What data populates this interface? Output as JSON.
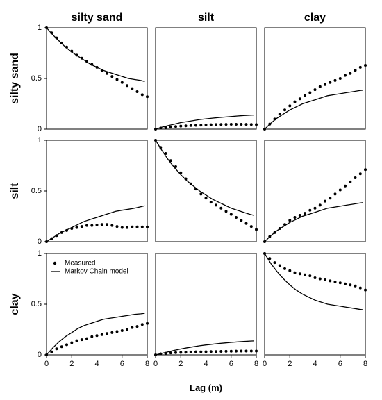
{
  "chart_data": {
    "type": "scatter",
    "layout": "3x3 facet grid",
    "x_label": "Lag  (m)",
    "x_ticks": [
      0,
      2,
      4,
      6,
      8
    ],
    "y_ticks": [
      0,
      0.5,
      1
    ],
    "y_tick_labels": [
      "0",
      "0.5",
      "1"
    ],
    "xlim": [
      0,
      8
    ],
    "ylim": [
      0,
      1
    ],
    "column_titles": [
      "silty sand",
      "silt",
      "clay"
    ],
    "row_titles": [
      "silty sand",
      "silt",
      "clay"
    ],
    "legend": {
      "placement": "top-left of bottom-left panel",
      "measured_label": "Measured",
      "model_label": "Markov Chain model"
    },
    "measured_x": [
      0,
      0.4,
      0.8,
      1.2,
      1.6,
      2.0,
      2.4,
      2.8,
      3.2,
      3.6,
      4.0,
      4.4,
      4.8,
      5.2,
      5.6,
      6.0,
      6.4,
      6.8,
      7.2,
      7.6,
      8.0
    ],
    "model_x": [
      0,
      0.5,
      1.0,
      1.5,
      2.0,
      2.5,
      3.0,
      3.5,
      4.0,
      4.5,
      5.0,
      5.5,
      6.0,
      6.5,
      7.0,
      7.5,
      7.8
    ],
    "panels": [
      {
        "row": "silty sand",
        "col": "silty sand",
        "measured": [
          1.0,
          0.95,
          0.9,
          0.85,
          0.81,
          0.77,
          0.73,
          0.7,
          0.67,
          0.64,
          0.61,
          0.58,
          0.55,
          0.52,
          0.49,
          0.46,
          0.43,
          0.4,
          0.37,
          0.34,
          0.32
        ],
        "model": [
          1.0,
          0.93,
          0.87,
          0.81,
          0.76,
          0.72,
          0.68,
          0.64,
          0.61,
          0.58,
          0.56,
          0.54,
          0.52,
          0.5,
          0.49,
          0.48,
          0.47
        ]
      },
      {
        "row": "silty sand",
        "col": "silt",
        "measured": [
          0.0,
          0.01,
          0.015,
          0.02,
          0.025,
          0.03,
          0.033,
          0.036,
          0.038,
          0.04,
          0.042,
          0.044,
          0.045,
          0.046,
          0.047,
          0.048,
          0.048,
          0.048,
          0.047,
          0.046,
          0.045
        ],
        "model": [
          0.0,
          0.02,
          0.035,
          0.05,
          0.065,
          0.075,
          0.085,
          0.095,
          0.102,
          0.109,
          0.115,
          0.12,
          0.125,
          0.13,
          0.135,
          0.138,
          0.14
        ]
      },
      {
        "row": "silty sand",
        "col": "clay",
        "measured": [
          0.0,
          0.05,
          0.1,
          0.15,
          0.19,
          0.23,
          0.27,
          0.3,
          0.33,
          0.36,
          0.39,
          0.42,
          0.44,
          0.46,
          0.48,
          0.5,
          0.53,
          0.55,
          0.58,
          0.61,
          0.63
        ],
        "model": [
          0.0,
          0.06,
          0.11,
          0.15,
          0.19,
          0.22,
          0.25,
          0.27,
          0.29,
          0.31,
          0.33,
          0.34,
          0.35,
          0.36,
          0.37,
          0.38,
          0.385
        ]
      },
      {
        "row": "silt",
        "col": "silty sand",
        "measured": [
          0.0,
          0.03,
          0.06,
          0.09,
          0.11,
          0.13,
          0.14,
          0.15,
          0.16,
          0.16,
          0.165,
          0.17,
          0.17,
          0.16,
          0.15,
          0.14,
          0.14,
          0.145,
          0.145,
          0.145,
          0.145
        ],
        "model": [
          0.0,
          0.04,
          0.08,
          0.11,
          0.14,
          0.17,
          0.2,
          0.22,
          0.24,
          0.26,
          0.28,
          0.3,
          0.31,
          0.32,
          0.33,
          0.345,
          0.355
        ]
      },
      {
        "row": "silt",
        "col": "silt",
        "measured": [
          1.0,
          0.93,
          0.87,
          0.8,
          0.74,
          0.68,
          0.62,
          0.57,
          0.52,
          0.47,
          0.43,
          0.39,
          0.36,
          0.33,
          0.3,
          0.27,
          0.24,
          0.21,
          0.18,
          0.15,
          0.12
        ],
        "model": [
          1.0,
          0.9,
          0.81,
          0.73,
          0.66,
          0.6,
          0.55,
          0.5,
          0.46,
          0.42,
          0.39,
          0.36,
          0.33,
          0.31,
          0.29,
          0.27,
          0.26
        ]
      },
      {
        "row": "silt",
        "col": "clay",
        "measured": [
          0.0,
          0.05,
          0.09,
          0.13,
          0.17,
          0.21,
          0.24,
          0.26,
          0.28,
          0.31,
          0.33,
          0.36,
          0.4,
          0.43,
          0.47,
          0.51,
          0.55,
          0.59,
          0.63,
          0.67,
          0.71
        ],
        "model": [
          0.0,
          0.06,
          0.11,
          0.15,
          0.19,
          0.22,
          0.25,
          0.27,
          0.29,
          0.31,
          0.33,
          0.34,
          0.35,
          0.36,
          0.37,
          0.38,
          0.385
        ]
      },
      {
        "row": "clay",
        "col": "silty sand",
        "measured": [
          0.0,
          0.03,
          0.06,
          0.08,
          0.1,
          0.12,
          0.14,
          0.15,
          0.16,
          0.18,
          0.19,
          0.2,
          0.21,
          0.22,
          0.23,
          0.24,
          0.25,
          0.27,
          0.28,
          0.3,
          0.31
        ],
        "model": [
          0.0,
          0.07,
          0.13,
          0.18,
          0.22,
          0.26,
          0.29,
          0.31,
          0.33,
          0.35,
          0.36,
          0.37,
          0.38,
          0.39,
          0.4,
          0.405,
          0.41
        ]
      },
      {
        "row": "clay",
        "col": "silt",
        "measured": [
          0.0,
          0.01,
          0.015,
          0.02,
          0.022,
          0.024,
          0.026,
          0.028,
          0.03,
          0.03,
          0.031,
          0.032,
          0.033,
          0.034,
          0.035,
          0.036,
          0.037,
          0.038,
          0.038,
          0.038,
          0.038
        ],
        "model": [
          0.0,
          0.015,
          0.03,
          0.045,
          0.058,
          0.07,
          0.08,
          0.09,
          0.098,
          0.105,
          0.112,
          0.118,
          0.123,
          0.128,
          0.132,
          0.136,
          0.138
        ]
      },
      {
        "row": "clay",
        "col": "clay",
        "measured": [
          1.0,
          0.95,
          0.91,
          0.88,
          0.85,
          0.83,
          0.81,
          0.8,
          0.79,
          0.78,
          0.76,
          0.75,
          0.74,
          0.73,
          0.72,
          0.71,
          0.7,
          0.69,
          0.68,
          0.66,
          0.64
        ],
        "model": [
          1.0,
          0.9,
          0.82,
          0.75,
          0.69,
          0.64,
          0.6,
          0.57,
          0.54,
          0.52,
          0.5,
          0.49,
          0.48,
          0.47,
          0.46,
          0.45,
          0.445
        ]
      }
    ]
  }
}
